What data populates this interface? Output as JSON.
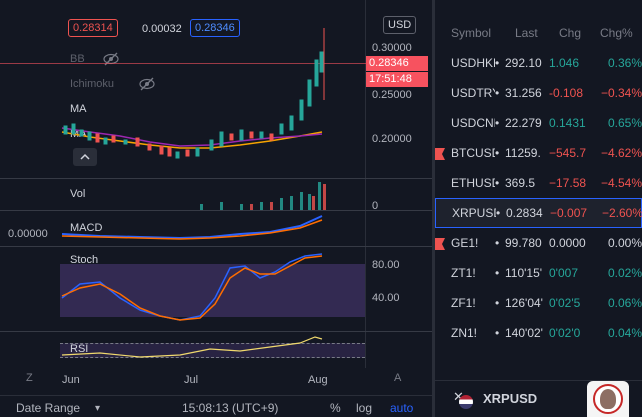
{
  "chart": {
    "ohlc_value": "0.28314",
    "change_value": "0.00032",
    "bid_value": "0.28346",
    "currency": "USD",
    "last_price_tag": "0.28346",
    "countdown": "17:51:48",
    "price_ticks": [
      "0.30000",
      "0.25000",
      "0.20000"
    ],
    "indicators": {
      "bb": "BB",
      "ichimoku": "Ichimoku",
      "ma1": "MA",
      "ma2": "MA"
    },
    "vol_label": "Vol",
    "vol_tick": "0",
    "macd_label": "MACD",
    "macd_value": "0.00000",
    "stoch_label": "Stoch",
    "stoch_ticks": [
      "80.00",
      "40.00"
    ],
    "rsi_label": "RSI",
    "time_labels": [
      "Jun",
      "Jul",
      "Aug"
    ],
    "zoom_z": "Z",
    "zoom_a": "A"
  },
  "bottom_bar": {
    "date_range": "Date Range",
    "time": "15:08:13 (UTC+9)",
    "percent": "%",
    "log": "log",
    "auto": "auto"
  },
  "watchlist": {
    "headers": {
      "symbol": "Symbol",
      "last": "Last",
      "chg": "Chg",
      "chg_pct": "Chg%"
    },
    "rows": [
      {
        "symbol": "USDHKD",
        "last": "292.10",
        "chg": "1.046",
        "chg_pct": "0.36%",
        "dir": "up",
        "flag": false
      },
      {
        "symbol": "USDTRY",
        "last": "31.256",
        "chg": "-0.108",
        "chg_pct": "−0.34%",
        "dir": "down",
        "flag": false
      },
      {
        "symbol": "USDCNH",
        "last": "22.279",
        "chg": "0.1431",
        "chg_pct": "0.65%",
        "dir": "up",
        "flag": false
      },
      {
        "symbol": "BTCUSD",
        "last": "11259.",
        "chg": "−545.7",
        "chg_pct": "−4.62%",
        "dir": "down",
        "flag": true
      },
      {
        "symbol": "ETHUSD",
        "last": "369.5",
        "chg": "−17.58",
        "chg_pct": "−4.54%",
        "dir": "down",
        "flag": false
      },
      {
        "symbol": "XRPUSD",
        "last": "0.2834",
        "chg": "−0.007",
        "chg_pct": "−2.60%",
        "dir": "down",
        "flag": false,
        "selected": true
      },
      {
        "symbol": "GE1!",
        "last": "99.780",
        "chg": "0.0000",
        "chg_pct": "0.00%",
        "dir": "neutral",
        "flag": true
      },
      {
        "symbol": "ZT1!",
        "last": "110'15'",
        "chg": "0'007",
        "chg_pct": "0.02%",
        "dir": "up",
        "flag": false
      },
      {
        "symbol": "ZF1!",
        "last": "126'04'",
        "chg": "0'02'5",
        "chg_pct": "0.06%",
        "dir": "up",
        "flag": false
      },
      {
        "symbol": "ZN1!",
        "last": "140'02'",
        "chg": "0'02'0",
        "chg_pct": "0.04%",
        "dir": "up",
        "flag": false
      }
    ],
    "footer_symbol": "XRPUSD"
  },
  "colors": {
    "up": "#26a69a",
    "down": "#ef5350",
    "accent": "#2962ff",
    "price_tag": "#f7525f"
  }
}
